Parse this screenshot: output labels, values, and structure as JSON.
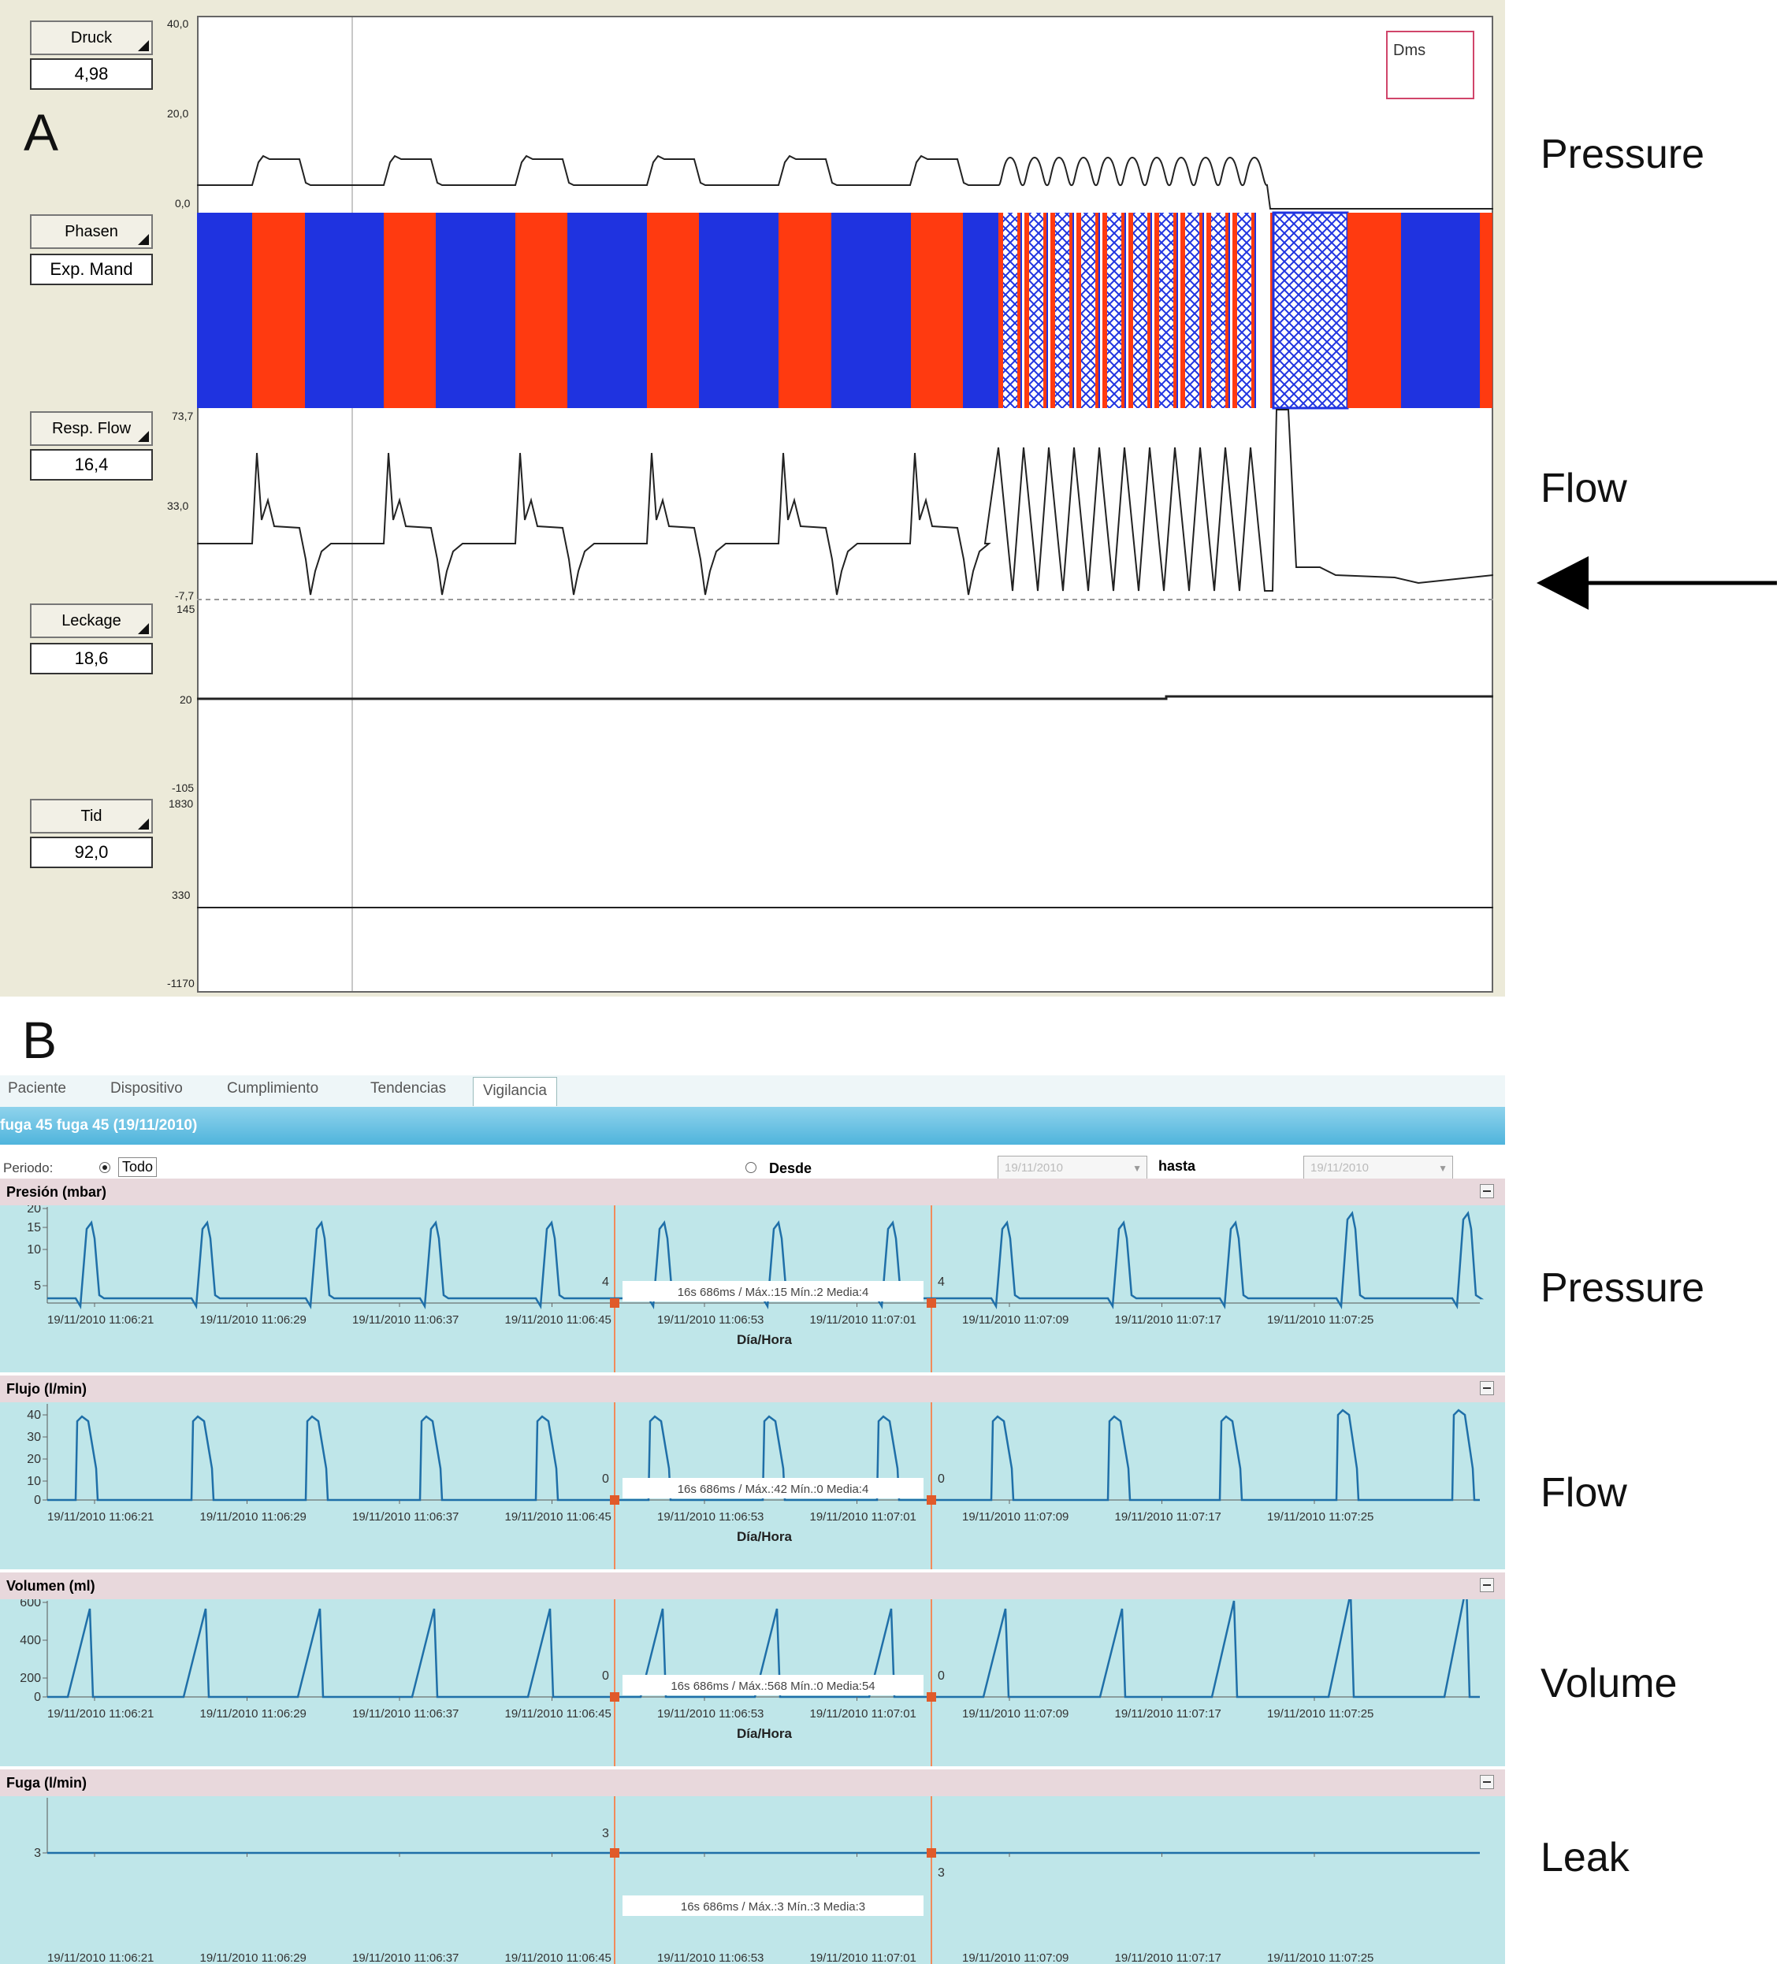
{
  "panel_a": {
    "letter": "A",
    "channels": [
      {
        "label": "Druck",
        "value": "4,98"
      },
      {
        "label": "Phasen",
        "value": "Exp. Mand"
      },
      {
        "label": "Resp. Flow",
        "value": "16,4"
      },
      {
        "label": "Leckage",
        "value": "18,6"
      },
      {
        "label": "Tid",
        "value": "92,0"
      }
    ],
    "pressure_ticks": [
      "40,0",
      "20,0",
      "0,0"
    ],
    "flow_ticks": [
      "73,7",
      "33,0",
      "-7,7"
    ],
    "leak_ticks": [
      "145",
      "20",
      "-105"
    ],
    "tid_ticks": [
      "1830",
      "330",
      "-1170"
    ],
    "legend_box": "Dms",
    "colors": {
      "blue": "#1f33e0",
      "red": "#ff3a10"
    }
  },
  "panel_a_side_labels": [
    "Pressure",
    "Flow"
  ],
  "panel_b": {
    "letter": "B",
    "tabs": [
      "Paciente",
      "Dispositivo",
      "Cumplimiento",
      "Tendencias",
      "Vigilancia"
    ],
    "active_tab": "Vigilancia",
    "title": "fuga 45 fuga 45 (19/11/2010)",
    "filter": {
      "period_label": "Periodo:",
      "all_label": "Todo",
      "from_label": "Desde",
      "from_date": "19/11/2010",
      "to_label": "hasta",
      "to_date": "19/11/2010"
    },
    "x_ticks": [
      "19/11/2010 11:06:21",
      "19/11/2010 11:06:29",
      "19/11/2010 11:06:37",
      "19/11/2010 11:06:45",
      "19/11/2010 11:06:53",
      "19/11/2010 11:07:01",
      "19/11/2010 11:07:09",
      "19/11/2010 11:07:17",
      "19/11/2010 11:07:25"
    ],
    "x_axis_title": "Día/Hora",
    "sections": [
      {
        "title": "Presión (mbar)",
        "y_ticks": [
          "20",
          "15",
          "10",
          "5"
        ],
        "cursor_left": "4",
        "cursor_right": "4",
        "stats": "16s 686ms / Máx.:15 Mín.:2 Media:4"
      },
      {
        "title": "Flujo (l/min)",
        "y_ticks": [
          "40",
          "30",
          "20",
          "10",
          "0"
        ],
        "cursor_left": "0",
        "cursor_right": "0",
        "stats": "16s 686ms / Máx.:42 Mín.:0 Media:4"
      },
      {
        "title": "Volumen (ml)",
        "y_ticks": [
          "600",
          "400",
          "200",
          "0"
        ],
        "cursor_left": "0",
        "cursor_right": "0",
        "stats": "16s 686ms / Máx.:568 Mín.:0 Media:54"
      },
      {
        "title": "Fuga (l/min)",
        "y_ticks": [
          "3"
        ],
        "cursor_left": "3",
        "cursor_right": "3",
        "stats": "16s 686ms / Máx.:3 Mín.:3 Media:3"
      }
    ]
  },
  "panel_b_side_labels": [
    "Pressure",
    "Flow",
    "Volume",
    "Leak"
  ]
}
